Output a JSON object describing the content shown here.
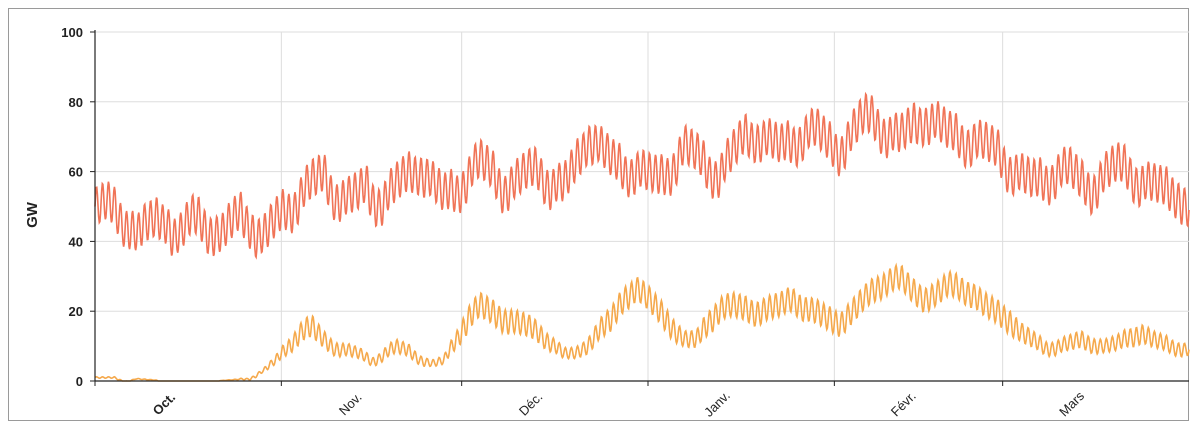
{
  "chart_data": {
    "type": "line",
    "title": "",
    "xlabel": "",
    "ylabel": "GW",
    "ylim": [
      0,
      100
    ],
    "yticks": [
      0,
      20,
      40,
      60,
      80,
      100
    ],
    "xticks": [
      "Oct.",
      "Nov.",
      "Déc.",
      "Janv.",
      "Févr.",
      "Mars"
    ],
    "grid": true,
    "legend": "none",
    "colors": {
      "series1": "#f07457",
      "series2": "#f5a94c",
      "grid": "#dddddd",
      "axis": "#222222"
    },
    "series": [
      {
        "anchors_x": [
          0,
          2,
          4,
          6,
          7,
          8,
          10,
          12,
          13,
          14,
          15,
          16,
          18,
          20,
          21,
          22,
          24,
          26,
          27,
          28,
          30,
          32,
          33,
          34,
          36,
          38,
          39,
          40,
          42,
          44,
          45,
          46,
          48,
          50,
          52,
          54,
          56,
          58,
          60,
          62,
          64,
          66,
          68,
          70,
          72,
          74,
          76,
          78,
          80,
          82,
          84,
          86,
          88,
          90,
          92,
          94,
          96,
          98,
          100,
          102,
          104,
          106,
          108,
          110,
          112,
          114,
          116,
          118,
          120,
          122,
          124,
          126,
          128,
          130,
          132,
          134,
          136,
          138,
          140,
          142,
          144,
          146,
          148,
          150,
          152,
          154,
          156,
          158,
          160,
          162,
          164,
          166,
          168,
          170,
          172,
          174,
          176,
          178,
          180,
          182
        ],
        "anchors_y": [
          50,
          52,
          49,
          46,
          42,
          45,
          47,
          49,
          43,
          42,
          45,
          48,
          47,
          44,
          42,
          45,
          49,
          47,
          43,
          42,
          47,
          51,
          52,
          54,
          58,
          60,
          57,
          55,
          53,
          55,
          57,
          54,
          53,
          57,
          60,
          63,
          58,
          54,
          56,
          60,
          64,
          61,
          57,
          58,
          61,
          62,
          57,
          57,
          63,
          72,
          68,
          64,
          62,
          62,
          60,
          59,
          63,
          68,
          66,
          62,
          61,
          66,
          71,
          72,
          70,
          68,
          70,
          72,
          73,
          69,
          68,
          72,
          77,
          76,
          72,
          71,
          74,
          77,
          75,
          72,
          71,
          70,
          69,
          67,
          63,
          60,
          58,
          59,
          61,
          62,
          58,
          57,
          60,
          63,
          62,
          58,
          57,
          56,
          56,
          49
        ]
      },
      {
        "anchors_x": [
          0,
          4,
          8,
          12,
          16,
          20,
          24,
          28,
          30,
          32,
          34,
          36,
          38,
          40,
          44,
          46,
          48,
          50,
          52,
          54,
          56,
          58,
          60,
          62,
          64,
          66,
          68,
          70,
          72,
          74,
          76,
          78,
          80,
          82,
          84,
          86,
          88,
          90,
          92,
          94,
          96,
          98,
          100,
          102,
          104,
          106,
          108,
          110,
          112,
          114,
          116,
          118,
          120,
          122,
          124,
          126,
          128,
          130,
          132,
          134,
          136,
          138,
          140,
          142,
          144,
          146,
          148,
          150,
          152,
          154,
          156,
          158,
          160,
          162,
          164,
          166,
          168,
          170,
          172,
          174,
          176,
          178,
          180,
          182
        ],
        "anchors_y": [
          1,
          1,
          0.5,
          0,
          0,
          0,
          0.5,
          3,
          6,
          10,
          14,
          16,
          12,
          10,
          8,
          6,
          8,
          10,
          9,
          7,
          5,
          6,
          12,
          18,
          22,
          20,
          18,
          17,
          16,
          14,
          11,
          8,
          8,
          11,
          15,
          18,
          24,
          27,
          24,
          20,
          16,
          12,
          12,
          17,
          21,
          22,
          21,
          20,
          21,
          22,
          24,
          21,
          20,
          18,
          17,
          20,
          24,
          27,
          29,
          30,
          26,
          24,
          25,
          28,
          27,
          25,
          22,
          20,
          18,
          14,
          12,
          10,
          10,
          11,
          12,
          11,
          10,
          11,
          13,
          14,
          12,
          11,
          10,
          9
        ]
      }
    ]
  }
}
